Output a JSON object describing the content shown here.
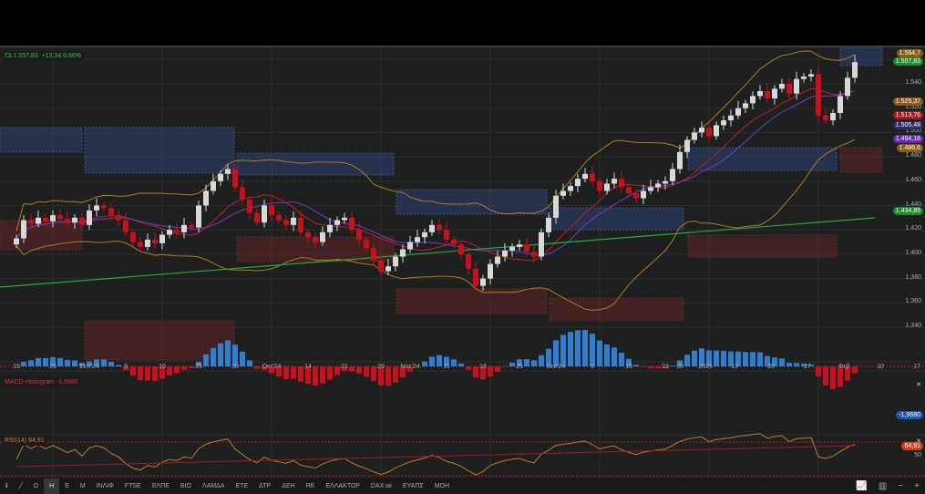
{
  "header": {
    "symbol": "ΓΔ",
    "price": "1.557,83",
    "change": "+13,34 0,86%"
  },
  "price_axis": {
    "ticks": [
      "1.540",
      "1.520",
      "1.500",
      "1.480",
      "1.460",
      "1.440",
      "1.420",
      "1.400",
      "1.380",
      "1.360",
      "1.340"
    ],
    "labels": [
      {
        "text": "1.564,7",
        "color": "#8a5a1a",
        "value": 1564.7
      },
      {
        "text": "1.557,83",
        "color": "#1f8a2e",
        "value": 1557.83
      },
      {
        "text": "1.525,37",
        "color": "#8a5a1a",
        "value": 1525.37
      },
      {
        "text": "1.513,76",
        "color": "#a11a22",
        "value": 1513.76
      },
      {
        "text": "1.505,48",
        "color": "#2b2a66",
        "value": 1505.48
      },
      {
        "text": "1.494,18",
        "color": "#6a2aa8",
        "value": 1494.18
      },
      {
        "text": "1.486,6",
        "color": "#8a5a1a",
        "value": 1486.6
      },
      {
        "text": "1.434,85",
        "color": "#1f8a2e",
        "value": 1434.85
      }
    ]
  },
  "dates": [
    {
      "t": "19",
      "d": 0
    },
    {
      "t": "26",
      "d": 5
    },
    {
      "t": "Σεπ'24",
      "d": 10
    },
    {
      "t": "9",
      "d": 15
    },
    {
      "t": "16",
      "d": 20
    },
    {
      "t": "23",
      "d": 25
    },
    {
      "t": "30",
      "d": 30
    },
    {
      "t": "Οκτ'24",
      "d": 35
    },
    {
      "t": "14",
      "d": 40
    },
    {
      "t": "21",
      "d": 45
    },
    {
      "t": "29",
      "d": 50
    },
    {
      "t": "Νοε'24",
      "d": 54
    },
    {
      "t": "11",
      "d": 59
    },
    {
      "t": "18",
      "d": 64
    },
    {
      "t": "25",
      "d": 69
    },
    {
      "t": "Δεκ'24",
      "d": 74
    },
    {
      "t": "9",
      "d": 79
    },
    {
      "t": "16",
      "d": 84
    },
    {
      "t": "23",
      "d": 89
    },
    {
      "t": "30",
      "d": 91
    },
    {
      "t": "2025",
      "d": 94.5
    },
    {
      "t": "13",
      "d": 98.5
    },
    {
      "t": "20",
      "d": 103.5
    },
    {
      "t": "27",
      "d": 108.5
    },
    {
      "t": "Φεβ",
      "d": 113.5
    },
    {
      "t": "10",
      "d": 118.5
    },
    {
      "t": "17",
      "d": 123.5
    }
  ],
  "macd": {
    "label": "MACD-Histogram",
    "value": "-1,9680"
  },
  "rsi": {
    "label": "RSI(14)",
    "value": "64,91",
    "level": "50"
  },
  "toolbar": {
    "items": [
      "Ω",
      "H",
      "E",
      "M",
      "ΙΝΛΙΦ",
      "FTSE",
      "ΕΛΠΕ",
      "ΒΙΟ",
      "ΛΑΜΔΑ",
      "ΕΤΕ",
      "ΔΤΡ",
      "ΔΕΗ",
      "RE",
      "ΕΛΛΑΚΤΩΡ",
      "DAX.wi",
      "ΕΥΑΠΣ",
      "ΜΟΗ"
    ],
    "active": "H"
  },
  "colors": {
    "up": "#d8d8d8",
    "down": "#c8101e",
    "macd_up": "#2f7fd0",
    "macd_down": "#c8101e"
  },
  "chart_data": {
    "type": "candlestick",
    "ylim": [
      1330,
      1570
    ],
    "closes": [
      1413,
      1428,
      1425,
      1430,
      1427,
      1432,
      1429,
      1426,
      1430,
      1424,
      1436,
      1440,
      1438,
      1432,
      1428,
      1418,
      1410,
      1406,
      1412,
      1409,
      1416,
      1420,
      1418,
      1424,
      1422,
      1440,
      1452,
      1460,
      1466,
      1470,
      1455,
      1445,
      1434,
      1426,
      1440,
      1432,
      1428,
      1424,
      1430,
      1418,
      1414,
      1410,
      1418,
      1424,
      1428,
      1430,
      1420,
      1412,
      1405,
      1395,
      1386,
      1390,
      1398,
      1404,
      1410,
      1414,
      1418,
      1424,
      1420,
      1412,
      1408,
      1400,
      1388,
      1374,
      1380,
      1392,
      1398,
      1403,
      1406,
      1408,
      1402,
      1398,
      1418,
      1430,
      1448,
      1452,
      1456,
      1462,
      1466,
      1460,
      1452,
      1458,
      1462,
      1455,
      1450,
      1446,
      1452,
      1455,
      1458,
      1460,
      1470,
      1484,
      1494,
      1500,
      1504,
      1497,
      1506,
      1510,
      1514,
      1520,
      1524,
      1530,
      1534,
      1528,
      1536,
      1540,
      1532,
      1544,
      1546,
      1548,
      1514,
      1510,
      1516,
      1530,
      1545,
      1557.83
    ]
  }
}
